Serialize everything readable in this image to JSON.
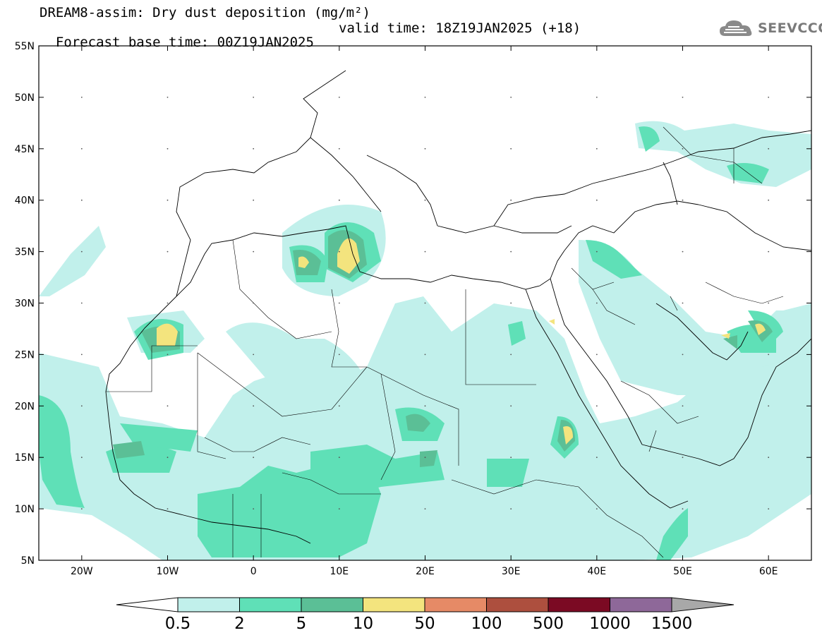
{
  "title_line1": "DREAM8-assim: Dry dust deposition (mg/m²)",
  "title_line2_left": "Forecast base time: 00Z19JAN2025",
  "title_line2_right": "valid time: 18Z19JAN2025 (+18)",
  "logo_text": "SEEVCCC",
  "logo_icon": "cloud-icon",
  "map": {
    "projection": "lat-lon",
    "lon_range": [
      -25,
      65
    ],
    "lat_range": [
      5,
      55
    ],
    "lat_ticks": [
      "5N",
      "10N",
      "15N",
      "20N",
      "25N",
      "30N",
      "35N",
      "40N",
      "45N",
      "50N",
      "55N"
    ],
    "lon_ticks": [
      "20W",
      "10W",
      "0",
      "10E",
      "20E",
      "30E",
      "40E",
      "50E",
      "60E"
    ]
  },
  "legend": {
    "labels": [
      "0.5",
      "2",
      "5",
      "10",
      "50",
      "100",
      "500",
      "1000",
      "1500"
    ],
    "colors": [
      "#c1f0eb",
      "#5fe0b7",
      "#5bbf96",
      "#f3e47e",
      "#e68a66",
      "#ad4f3e",
      "#7b0a23",
      "#8e6899"
    ],
    "under_color": "#ffffff",
    "over_color": "#a8a8a8"
  }
}
